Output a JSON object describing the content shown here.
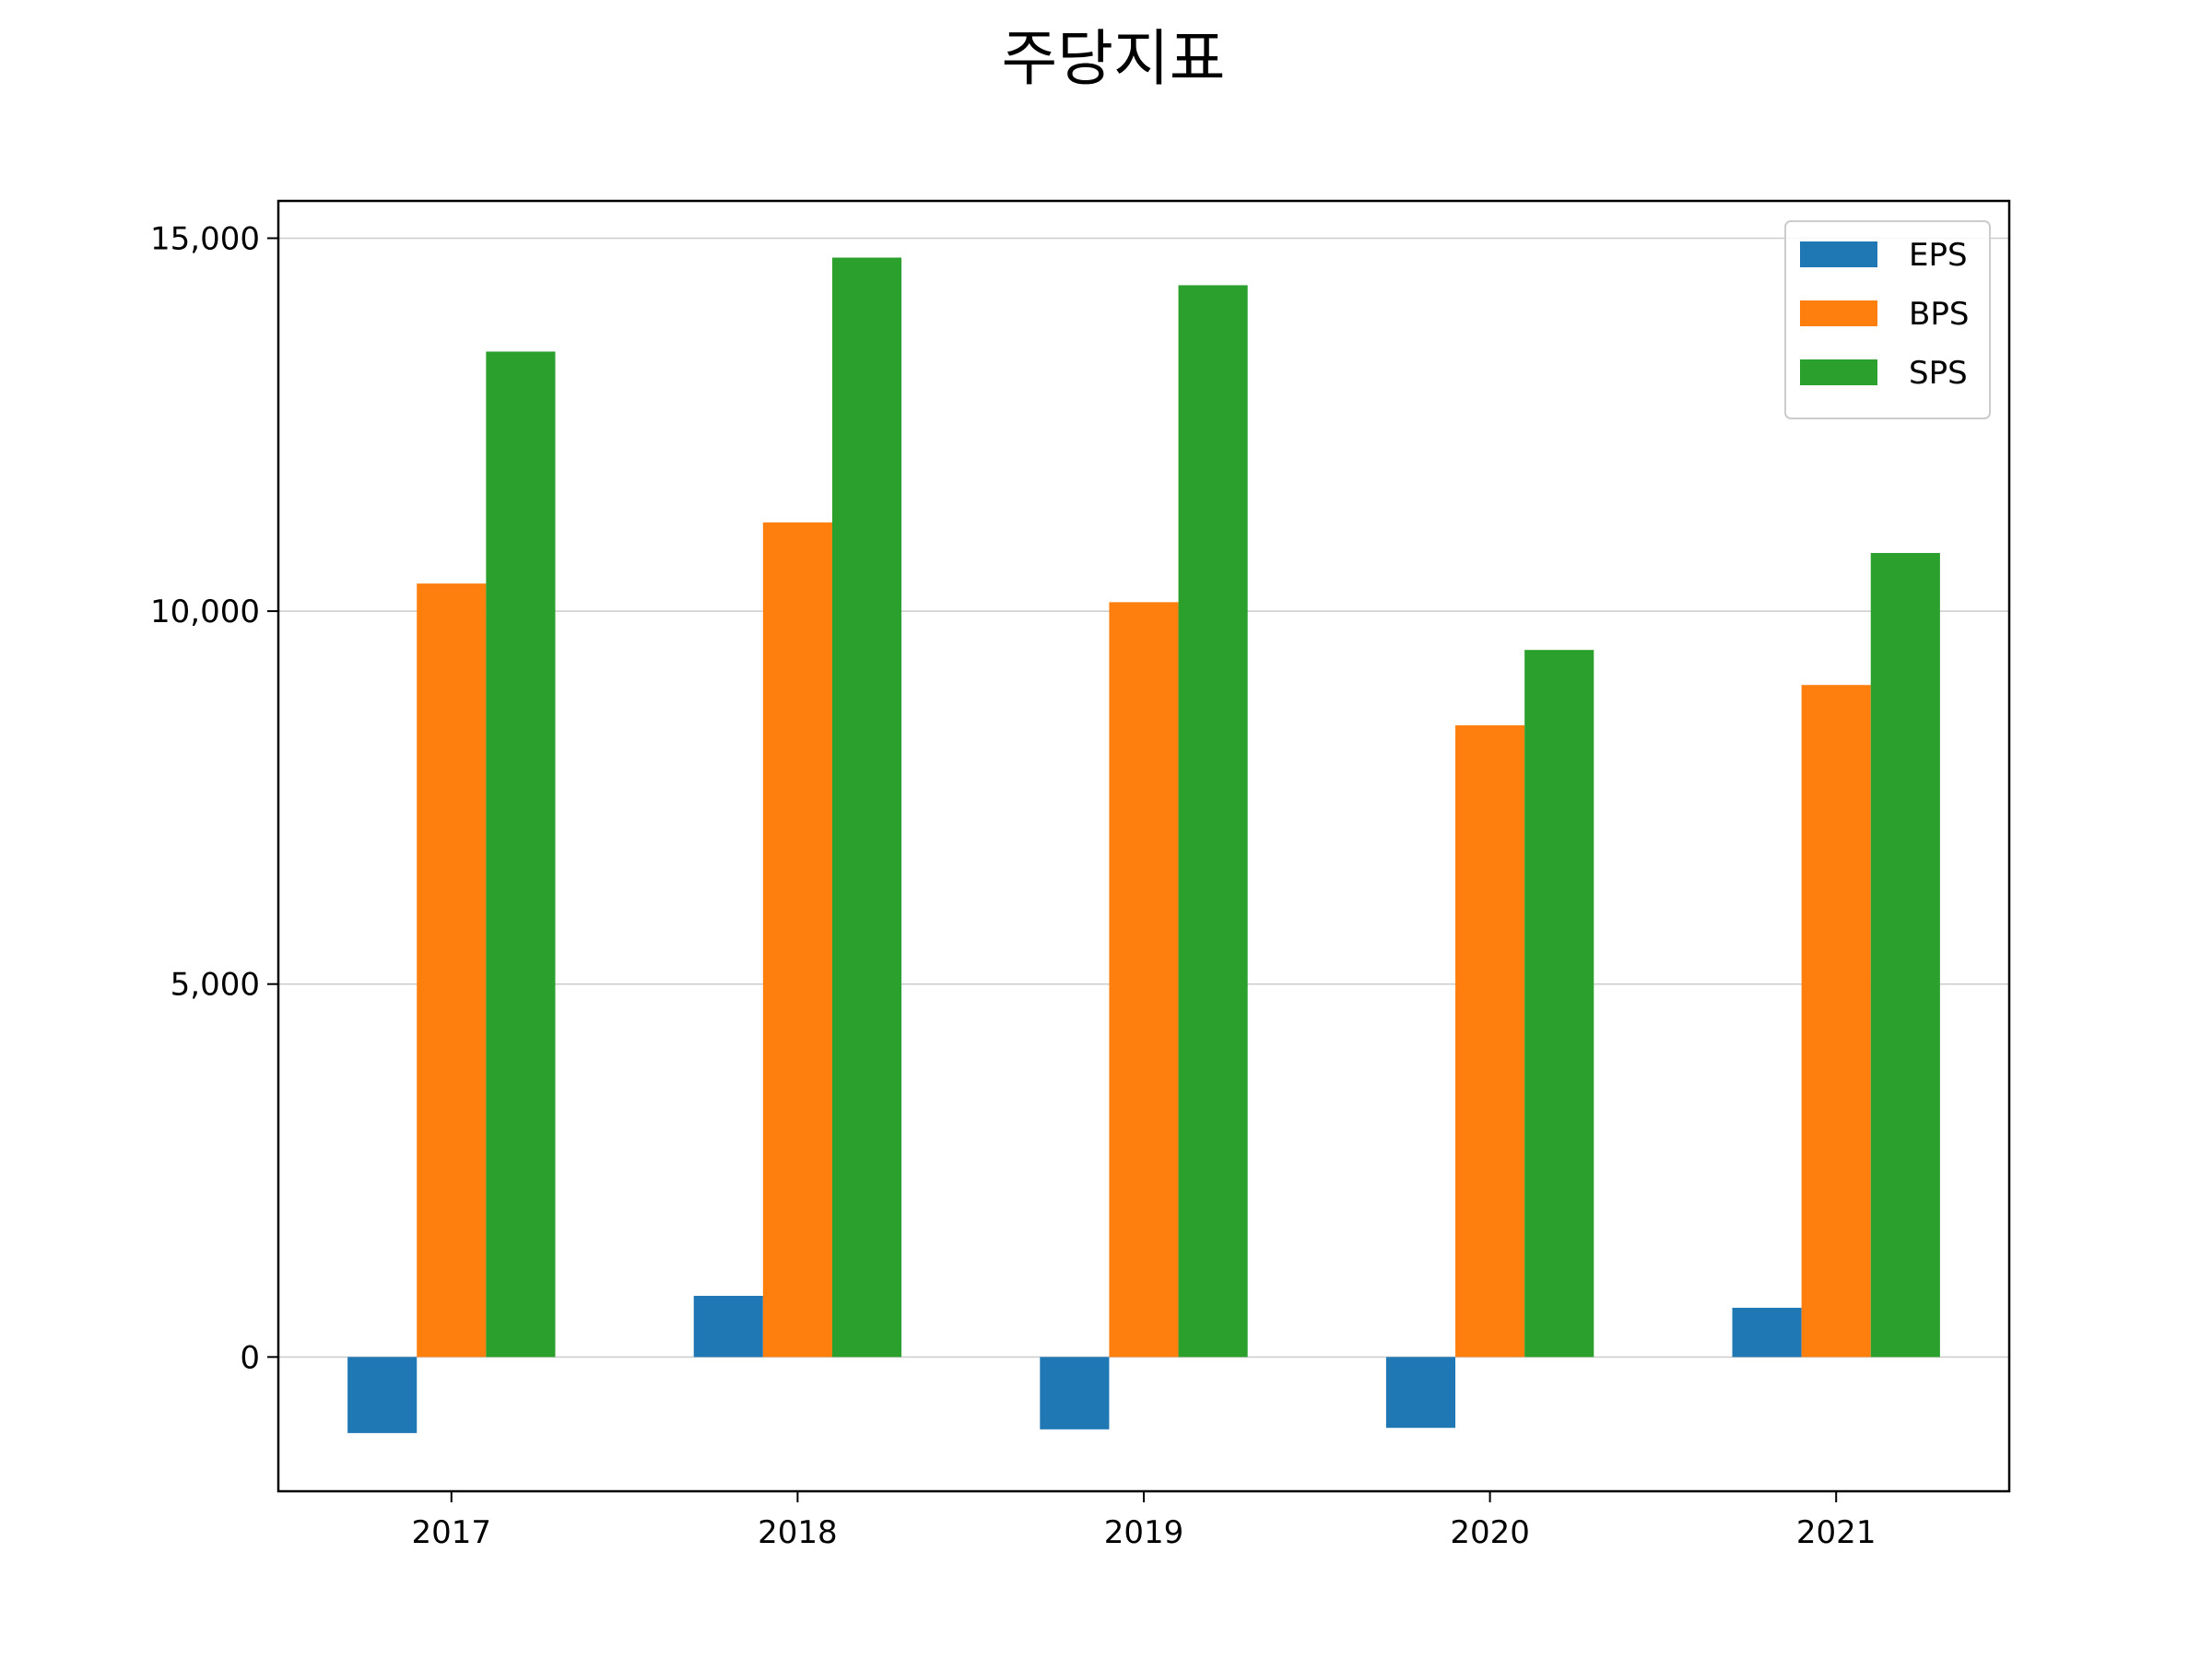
{
  "chart_data": {
    "type": "bar",
    "title": "주당지표",
    "xlabel": "",
    "ylabel": "",
    "categories": [
      "2017",
      "2018",
      "2019",
      "2020",
      "2021"
    ],
    "series": [
      {
        "name": "EPS",
        "color": "#1f77b4",
        "values": [
          -1020,
          820,
          -970,
          -950,
          660
        ]
      },
      {
        "name": "BPS",
        "color": "#ff7f0e",
        "values": [
          10370,
          11190,
          10120,
          8470,
          9010
        ]
      },
      {
        "name": "SPS",
        "color": "#2ca02c",
        "values": [
          13480,
          14740,
          14370,
          9480,
          10780
        ]
      }
    ],
    "yticks": [
      0,
      5000,
      10000,
      15000
    ],
    "ytick_labels": [
      "0",
      "5,000",
      "10,000",
      "15,000"
    ],
    "ylim": [
      -1800,
      15500
    ],
    "grid": "horizontal",
    "legend_position": "upper-right"
  }
}
